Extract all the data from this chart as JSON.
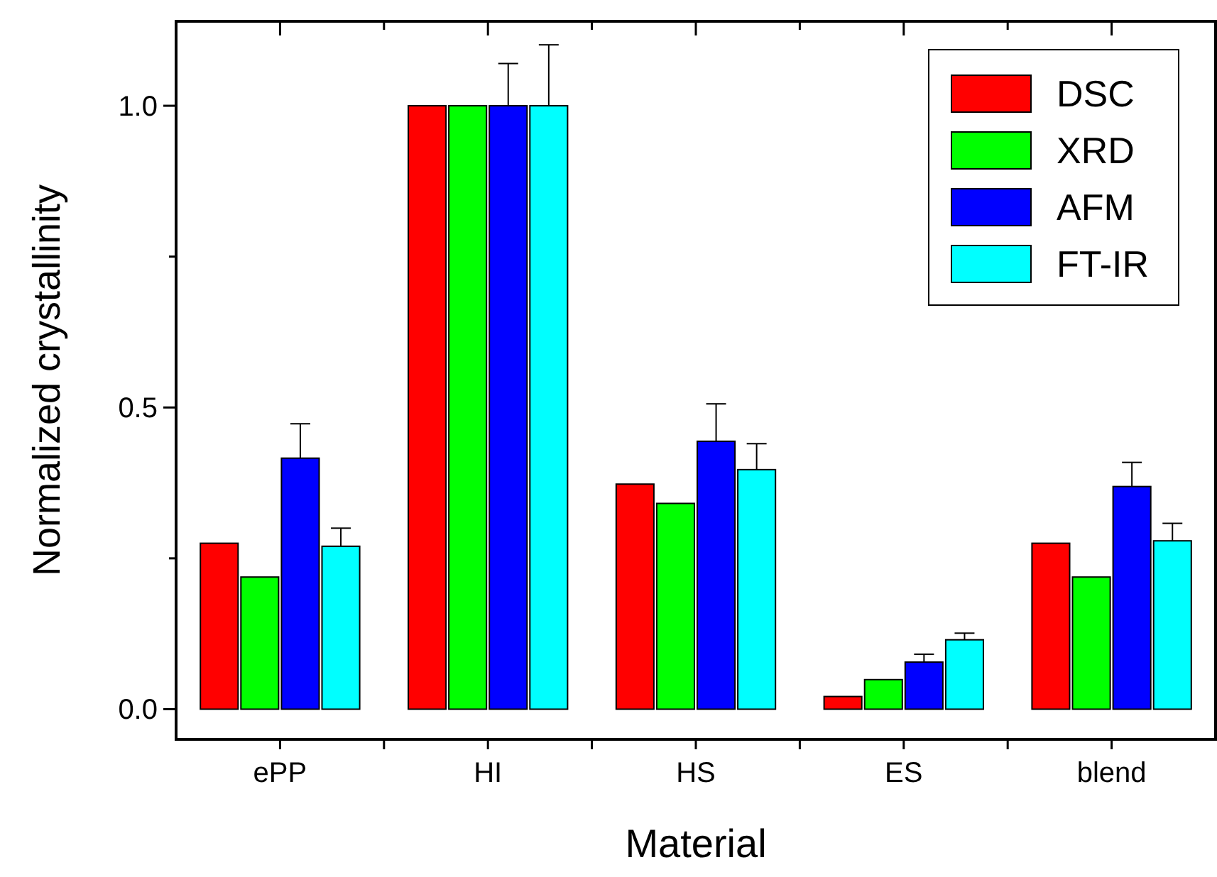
{
  "chart_data": {
    "type": "bar",
    "xlabel": "Material",
    "ylabel": "Normalized crystallinity",
    "categories": [
      "ePP",
      "HI",
      "HS",
      "ES",
      "blend"
    ],
    "series": [
      {
        "name": "DSC",
        "color": "#ff0000",
        "values": [
          0.275,
          1.0,
          0.373,
          0.021,
          0.275
        ]
      },
      {
        "name": "XRD",
        "color": "#00ff00",
        "values": [
          0.219,
          1.0,
          0.341,
          0.049,
          0.219
        ]
      },
      {
        "name": "AFM",
        "color": "#0000ff",
        "values": [
          0.416,
          1.0,
          0.444,
          0.078,
          0.369
        ],
        "errors": [
          [
            0.416,
            0.473
          ],
          [
            1.0,
            1.07
          ],
          [
            0.444,
            0.506
          ],
          [
            0.078,
            0.091
          ],
          [
            0.369,
            0.409
          ]
        ]
      },
      {
        "name": "FT-IR",
        "color": "#00ffff",
        "values": [
          0.27,
          1.0,
          0.397,
          0.115,
          0.279
        ],
        "errors": [
          [
            0.27,
            0.3
          ],
          [
            1.0,
            1.101
          ],
          [
            0.397,
            0.44
          ],
          [
            0.115,
            0.126
          ],
          [
            0.279,
            0.308
          ]
        ]
      }
    ],
    "ylim": [
      -0.05,
      1.14
    ],
    "yticks": [
      {
        "value": 0,
        "label": "0.0"
      },
      {
        "value": 0.25,
        "label": null
      },
      0.5,
      {
        "value": 0.75,
        "label": null
      },
      {
        "value": 1,
        "label": "1.0"
      }
    ],
    "legend": "top right",
    "grid": false
  }
}
